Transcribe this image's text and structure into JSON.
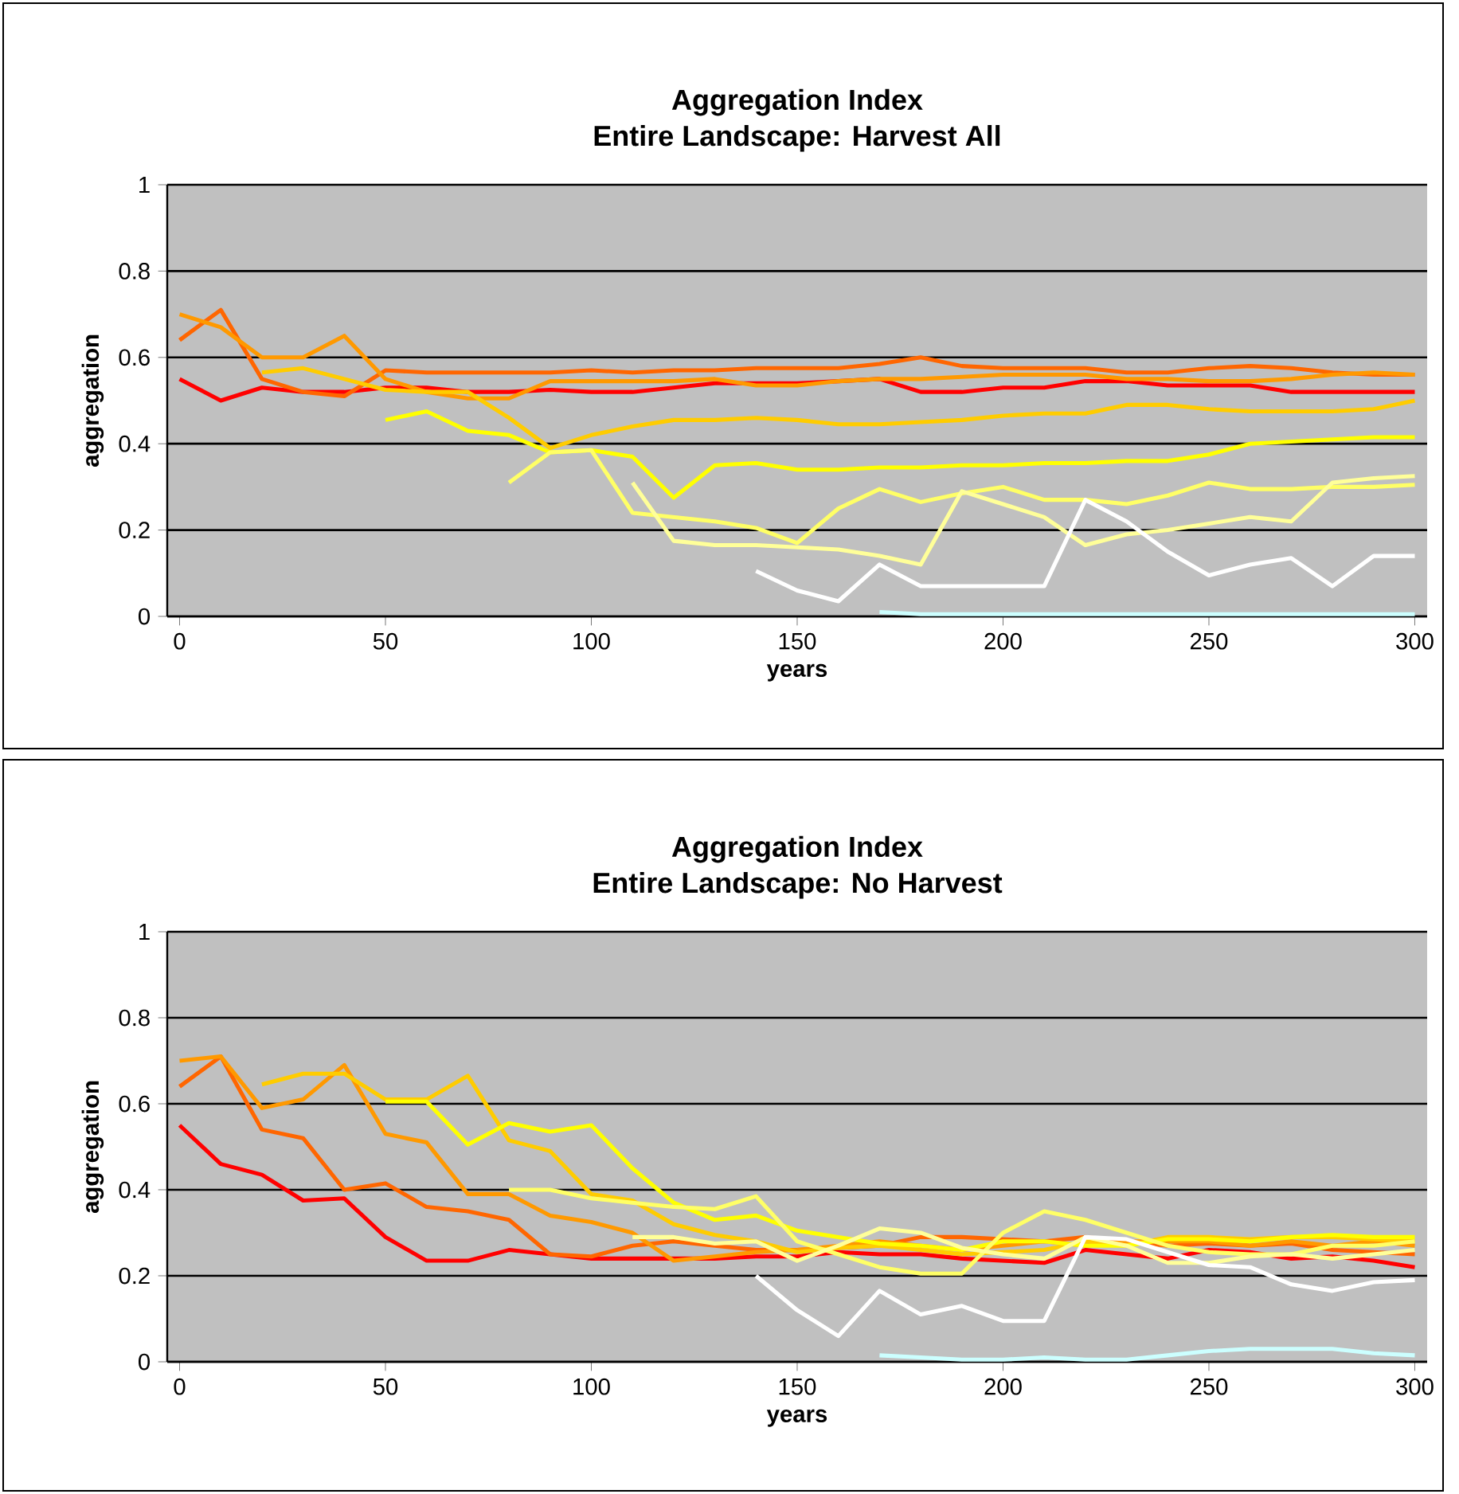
{
  "chart_data": [
    {
      "type": "line",
      "title": "Aggregation Index",
      "subtitle": "Entire Landscape: Harvest All",
      "xlabel": "years",
      "ylabel": "aggregation",
      "x": [
        0,
        10,
        20,
        30,
        40,
        50,
        60,
        70,
        80,
        90,
        100,
        110,
        120,
        130,
        140,
        150,
        160,
        170,
        180,
        190,
        200,
        210,
        220,
        230,
        240,
        250,
        260,
        270,
        280,
        290,
        300
      ],
      "xlim": [
        -3,
        303
      ],
      "ylim": [
        0,
        1
      ],
      "xticks": [
        0,
        50,
        100,
        150,
        200,
        250,
        300
      ],
      "yticks": [
        0,
        0.2,
        0.4,
        0.6,
        0.8,
        1
      ],
      "grid": "y",
      "series": [
        {
          "color": "#ff0000",
          "values": [
            0.55,
            0.5,
            0.53,
            0.52,
            0.52,
            0.53,
            0.53,
            0.52,
            0.52,
            0.525,
            0.52,
            0.52,
            0.53,
            0.54,
            0.54,
            0.54,
            0.545,
            0.55,
            0.52,
            0.52,
            0.53,
            0.53,
            0.545,
            0.545,
            0.535,
            0.535,
            0.535,
            0.52,
            0.52,
            0.52,
            0.52
          ]
        },
        {
          "color": "#ff6600",
          "values": [
            0.64,
            0.71,
            0.55,
            0.52,
            0.51,
            0.57,
            0.565,
            0.565,
            0.565,
            0.565,
            0.57,
            0.565,
            0.57,
            0.57,
            0.575,
            0.575,
            0.575,
            0.585,
            0.6,
            0.58,
            0.575,
            0.575,
            0.575,
            0.565,
            0.565,
            0.575,
            0.58,
            0.575,
            0.565,
            0.56,
            0.56
          ]
        },
        {
          "color": "#ff9900",
          "values": [
            0.7,
            0.67,
            0.6,
            0.6,
            0.65,
            0.55,
            0.52,
            0.505,
            0.505,
            0.545,
            0.545,
            0.545,
            0.545,
            0.55,
            0.535,
            0.535,
            0.545,
            0.55,
            0.55,
            0.555,
            0.56,
            0.56,
            0.56,
            0.55,
            0.55,
            0.545,
            0.545,
            0.55,
            0.56,
            0.565,
            0.56
          ]
        },
        {
          "color": "#ffcc00",
          "values": [
            null,
            null,
            0.565,
            0.575,
            0.55,
            0.525,
            0.52,
            0.52,
            0.46,
            0.39,
            0.42,
            0.44,
            0.455,
            0.455,
            0.46,
            0.455,
            0.445,
            0.445,
            0.45,
            0.455,
            0.465,
            0.47,
            0.47,
            0.49,
            0.49,
            0.48,
            0.475,
            0.475,
            0.475,
            0.48,
            0.5
          ]
        },
        {
          "color": "#ffff00",
          "values": [
            null,
            null,
            null,
            null,
            null,
            0.455,
            0.475,
            0.43,
            0.42,
            0.38,
            0.385,
            0.37,
            0.275,
            0.35,
            0.355,
            0.34,
            0.34,
            0.345,
            0.345,
            0.35,
            0.35,
            0.355,
            0.355,
            0.36,
            0.36,
            0.375,
            0.4,
            0.405,
            0.41,
            0.415,
            0.415
          ]
        },
        {
          "color": "#ffff66",
          "values": [
            null,
            null,
            null,
            null,
            null,
            null,
            null,
            null,
            0.31,
            0.38,
            0.385,
            0.24,
            0.23,
            0.22,
            0.205,
            0.17,
            0.25,
            0.295,
            0.265,
            0.285,
            0.3,
            0.27,
            0.27,
            0.26,
            0.28,
            0.31,
            0.295,
            0.295,
            0.3,
            0.3,
            0.305
          ]
        },
        {
          "color": "#ffff99",
          "values": [
            null,
            null,
            null,
            null,
            null,
            null,
            null,
            null,
            null,
            null,
            null,
            0.31,
            0.175,
            0.165,
            0.165,
            0.16,
            0.155,
            0.14,
            0.12,
            0.29,
            0.26,
            0.23,
            0.165,
            0.19,
            0.2,
            0.215,
            0.23,
            0.22,
            0.31,
            0.32,
            0.325
          ]
        },
        {
          "color": "#ffffff",
          "values": [
            null,
            null,
            null,
            null,
            null,
            null,
            null,
            null,
            null,
            null,
            null,
            null,
            null,
            null,
            0.105,
            0.06,
            0.035,
            0.12,
            0.07,
            0.07,
            0.07,
            0.07,
            0.27,
            0.22,
            0.15,
            0.095,
            0.12,
            0.135,
            0.07,
            0.14,
            0.14
          ]
        },
        {
          "color": "#ccffff",
          "values": [
            null,
            null,
            null,
            null,
            null,
            null,
            null,
            null,
            null,
            null,
            null,
            null,
            null,
            null,
            null,
            null,
            null,
            0.01,
            0.005,
            0.005,
            0.005,
            0.005,
            0.005,
            0.005,
            0.005,
            0.005,
            0.005,
            0.005,
            0.005,
            0.005,
            0.005
          ]
        }
      ]
    },
    {
      "type": "line",
      "title": "Aggregation Index",
      "subtitle": "Entire Landscape: No Harvest",
      "xlabel": "years",
      "ylabel": "aggregation",
      "x": [
        0,
        10,
        20,
        30,
        40,
        50,
        60,
        70,
        80,
        90,
        100,
        110,
        120,
        130,
        140,
        150,
        160,
        170,
        180,
        190,
        200,
        210,
        220,
        230,
        240,
        250,
        260,
        270,
        280,
        290,
        300
      ],
      "xlim": [
        -3,
        303
      ],
      "ylim": [
        0,
        1
      ],
      "xticks": [
        0,
        50,
        100,
        150,
        200,
        250,
        300
      ],
      "yticks": [
        0,
        0.2,
        0.4,
        0.6,
        0.8,
        1
      ],
      "grid": "y",
      "series": [
        {
          "color": "#ff0000",
          "values": [
            0.55,
            0.46,
            0.435,
            0.375,
            0.38,
            0.29,
            0.235,
            0.235,
            0.26,
            0.25,
            0.24,
            0.24,
            0.24,
            0.24,
            0.245,
            0.245,
            0.255,
            0.25,
            0.25,
            0.24,
            0.235,
            0.23,
            0.26,
            0.25,
            0.24,
            0.26,
            0.255,
            0.24,
            0.245,
            0.235,
            0.22
          ]
        },
        {
          "color": "#ff6600",
          "values": [
            0.64,
            0.71,
            0.54,
            0.52,
            0.4,
            0.415,
            0.36,
            0.35,
            0.33,
            0.25,
            0.245,
            0.27,
            0.28,
            0.27,
            0.26,
            0.26,
            0.265,
            0.27,
            0.29,
            0.29,
            0.285,
            0.28,
            0.29,
            0.28,
            0.27,
            0.275,
            0.27,
            0.275,
            0.26,
            0.255,
            0.25
          ]
        },
        {
          "color": "#ff9900",
          "values": [
            0.7,
            0.71,
            0.59,
            0.61,
            0.69,
            0.53,
            0.51,
            0.39,
            0.39,
            0.34,
            0.325,
            0.3,
            0.235,
            0.245,
            0.255,
            0.26,
            0.27,
            0.28,
            0.27,
            0.26,
            0.27,
            0.28,
            0.27,
            0.28,
            0.28,
            0.28,
            0.27,
            0.28,
            0.27,
            0.28,
            0.27
          ]
        },
        {
          "color": "#ffcc00",
          "values": [
            null,
            null,
            0.645,
            0.67,
            0.67,
            0.61,
            0.61,
            0.665,
            0.515,
            0.49,
            0.39,
            0.375,
            0.32,
            0.295,
            0.28,
            0.255,
            0.265,
            0.27,
            0.26,
            0.25,
            0.255,
            0.26,
            0.28,
            0.27,
            0.29,
            0.29,
            0.285,
            0.29,
            0.29,
            0.285,
            0.28
          ]
        },
        {
          "color": "#ffff00",
          "values": [
            null,
            null,
            null,
            null,
            null,
            0.605,
            0.605,
            0.505,
            0.555,
            0.535,
            0.55,
            0.45,
            0.37,
            0.33,
            0.34,
            0.305,
            0.29,
            0.275,
            0.27,
            0.26,
            0.28,
            0.28,
            0.27,
            0.27,
            0.285,
            0.285,
            0.28,
            0.29,
            0.295,
            0.29,
            0.29
          ]
        },
        {
          "color": "#ffff66",
          "values": [
            null,
            null,
            null,
            null,
            null,
            null,
            null,
            null,
            0.4,
            0.4,
            0.38,
            0.37,
            0.36,
            0.355,
            0.385,
            0.28,
            0.25,
            0.22,
            0.205,
            0.205,
            0.3,
            0.35,
            0.33,
            0.3,
            0.27,
            0.255,
            0.25,
            0.25,
            0.27,
            0.27,
            0.28
          ]
        },
        {
          "color": "#ffff99",
          "values": [
            null,
            null,
            null,
            null,
            null,
            null,
            null,
            null,
            null,
            null,
            null,
            0.29,
            0.29,
            0.275,
            0.28,
            0.235,
            0.27,
            0.31,
            0.3,
            0.265,
            0.25,
            0.24,
            0.29,
            0.27,
            0.23,
            0.23,
            0.245,
            0.25,
            0.24,
            0.25,
            0.26
          ]
        },
        {
          "color": "#ffffff",
          "values": [
            null,
            null,
            null,
            null,
            null,
            null,
            null,
            null,
            null,
            null,
            null,
            null,
            null,
            null,
            0.2,
            0.12,
            0.06,
            0.165,
            0.11,
            0.13,
            0.095,
            0.095,
            0.29,
            0.285,
            0.255,
            0.225,
            0.22,
            0.18,
            0.165,
            0.185,
            0.19
          ]
        },
        {
          "color": "#ccffff",
          "values": [
            null,
            null,
            null,
            null,
            null,
            null,
            null,
            null,
            null,
            null,
            null,
            null,
            null,
            null,
            null,
            null,
            null,
            0.015,
            0.01,
            0.005,
            0.005,
            0.01,
            0.005,
            0.005,
            0.015,
            0.025,
            0.03,
            0.03,
            0.03,
            0.02,
            0.015
          ]
        }
      ]
    }
  ]
}
